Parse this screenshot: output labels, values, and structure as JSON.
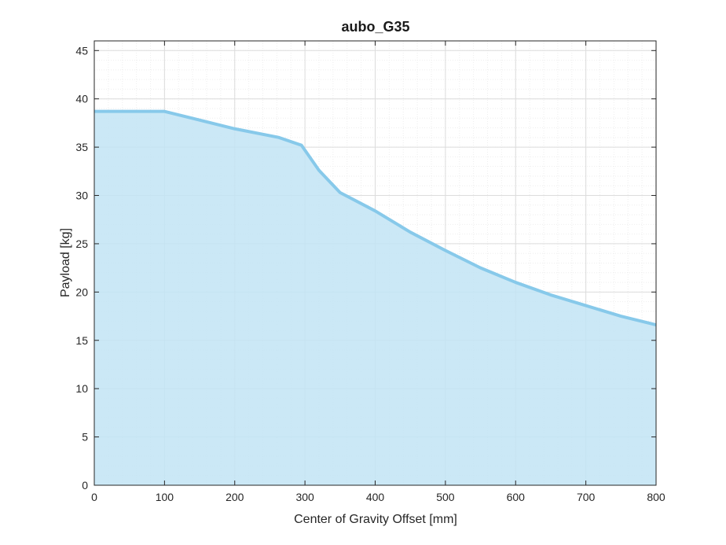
{
  "chart_data": {
    "type": "area",
    "title": "aubo_G35",
    "xlabel": "Center of Gravity Offset [mm]",
    "ylabel": "Payload [kg]",
    "xlim": [
      0,
      800
    ],
    "ylim": [
      0,
      46
    ],
    "xticks": [
      0,
      100,
      200,
      300,
      400,
      500,
      600,
      700,
      800
    ],
    "yticks": [
      0,
      5,
      10,
      15,
      20,
      25,
      30,
      35,
      40,
      45
    ],
    "grid": true,
    "minor_grid": true,
    "colors": {
      "fill": "#c2e4f5",
      "line": "#87c9ea",
      "axis": "#262626",
      "grid_major": "#dcdcdc",
      "grid_minor": "#eeeeee"
    },
    "series": [
      {
        "x": [
          0,
          100,
          150,
          200,
          263,
          295,
          320,
          350,
          400,
          450,
          500,
          550,
          600,
          650,
          700,
          750,
          800
        ],
        "y": [
          38.7,
          38.7,
          37.8,
          36.9,
          36.0,
          35.2,
          32.6,
          30.3,
          28.4,
          26.2,
          24.3,
          22.5,
          21.0,
          19.7,
          18.6,
          17.5,
          16.6
        ]
      }
    ]
  }
}
